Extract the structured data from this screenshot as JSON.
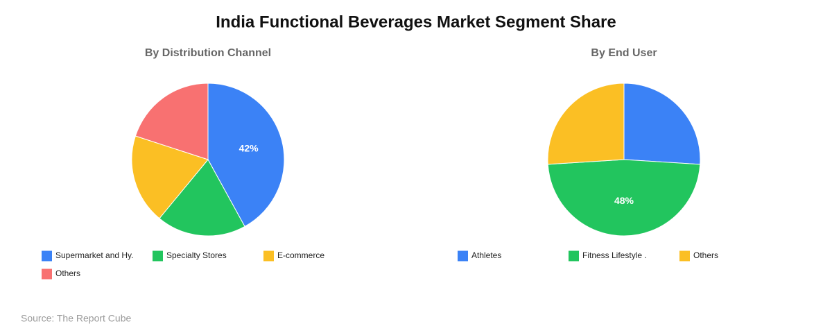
{
  "title": "India Functional Beverages Market Segment Share",
  "source": "Source: The Report Cube",
  "chart_data": [
    {
      "type": "pie",
      "title": "By Distribution Channel",
      "categories": [
        "Supermarket and Hy.",
        "Specialty Stores",
        "E-commerce",
        "Others"
      ],
      "values": [
        42,
        19,
        19,
        20
      ],
      "value_labels": [
        "42%",
        null,
        null,
        null
      ],
      "colors": [
        "#3b82f6",
        "#22c55e",
        "#fbbf24",
        "#f87171"
      ]
    },
    {
      "type": "pie",
      "title": "By End User",
      "categories": [
        "Athletes",
        "Fitness Lifestyle .",
        "Others"
      ],
      "values": [
        26,
        48,
        26
      ],
      "value_labels": [
        null,
        "48%",
        null
      ],
      "colors": [
        "#3b82f6",
        "#22c55e",
        "#fbbf24"
      ]
    }
  ]
}
